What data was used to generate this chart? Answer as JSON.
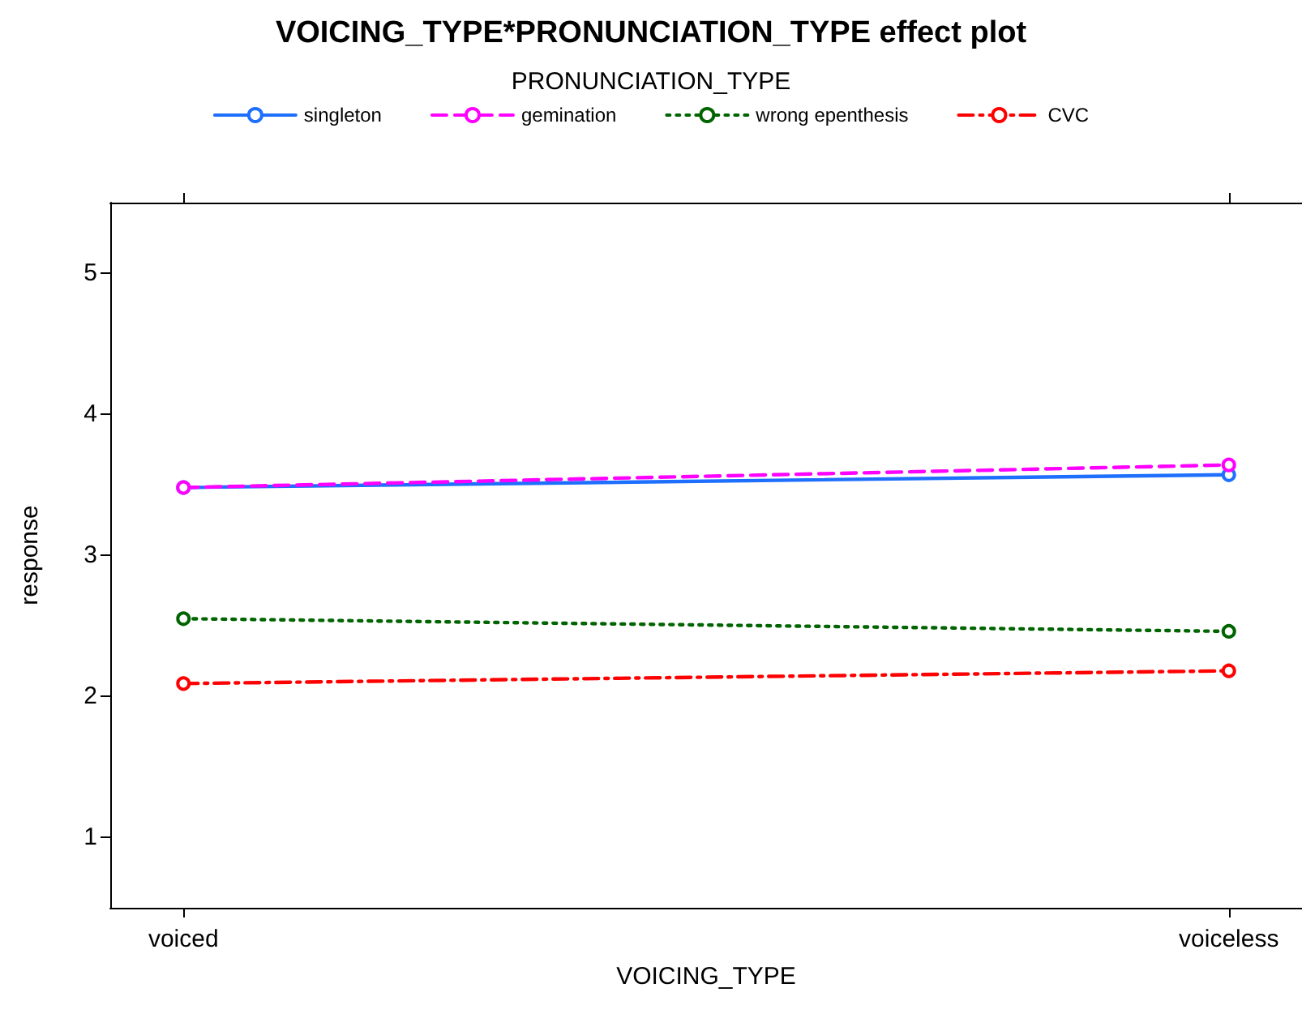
{
  "chart_data": {
    "type": "line",
    "title": "VOICING_TYPE*PRONUNCIATION_TYPE effect plot",
    "legend_title": "PRONUNCIATION_TYPE",
    "xlabel": "VOICING_TYPE",
    "ylabel": "response",
    "categories": [
      "voiced",
      "voiceless"
    ],
    "series": [
      {
        "name": "singleton",
        "color": "#1f6fff",
        "line_style": "solid",
        "values": [
          3.48,
          3.57
        ]
      },
      {
        "name": "gemination",
        "color": "#ff00ff",
        "line_style": "dashed",
        "values": [
          3.48,
          3.64
        ]
      },
      {
        "name": "wrong epenthesis",
        "color": "#006400",
        "line_style": "dotted",
        "values": [
          2.55,
          2.46
        ]
      },
      {
        "name": "CVC",
        "color": "#ff0000",
        "line_style": "dashdot",
        "values": [
          2.09,
          2.18
        ]
      }
    ],
    "ylim": [
      0.5,
      5.5
    ],
    "yticks": [
      1,
      2,
      3,
      4,
      5
    ],
    "grid": false,
    "legend": "top",
    "marker": "circle"
  }
}
